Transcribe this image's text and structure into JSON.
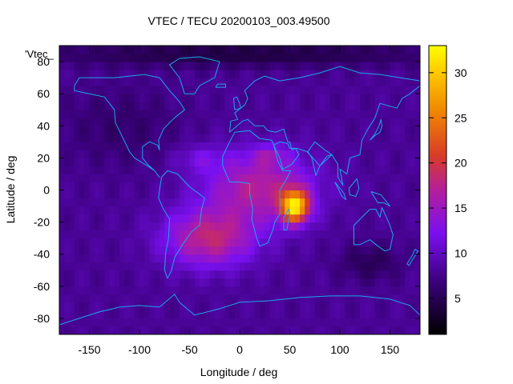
{
  "chart_data": {
    "type": "heatmap",
    "title": "VTEC / TECU 20200103_003.49500",
    "xlabel": "Longitude / deg",
    "ylabel": "Latitude / deg",
    "key_label": "'Vtec_",
    "xlim": [
      -180,
      180
    ],
    "ylim": [
      -90,
      90
    ],
    "xticks": [
      -150,
      -100,
      -50,
      0,
      50,
      100,
      150
    ],
    "yticks": [
      -80,
      -60,
      -40,
      -20,
      0,
      20,
      40,
      60,
      80
    ],
    "colorbar": {
      "min": 1,
      "max": 33,
      "ticks": [
        5,
        10,
        15,
        20,
        25,
        30
      ]
    },
    "grid_step_deg": 5,
    "background_tecu": 8,
    "field_blobs": [
      {
        "lon": 55,
        "lat": -10,
        "lon_sigma": 14,
        "lat_sigma": 10,
        "tecu": 21
      },
      {
        "lon": 20,
        "lat": 2,
        "lon_sigma": 55,
        "lat_sigma": 22,
        "tecu": 9
      },
      {
        "lon": -30,
        "lat": -30,
        "lon_sigma": 45,
        "lat_sigma": 18,
        "tecu": 10
      },
      {
        "lon": 30,
        "lat": 22,
        "lon_sigma": 18,
        "lat_sigma": 6,
        "tecu": 4
      },
      {
        "lon": -40,
        "lat": 20,
        "lon_sigma": 25,
        "lat_sigma": 8,
        "tecu": 3
      },
      {
        "lon": -120,
        "lat": 40,
        "lon_sigma": 60,
        "lat_sigma": 25,
        "tecu": -2
      },
      {
        "lon": 0,
        "lat": 85,
        "lon_sigma": 200,
        "lat_sigma": 8,
        "tecu": -4
      },
      {
        "lon": 130,
        "lat": -45,
        "lon_sigma": 30,
        "lat_sigma": 12,
        "tecu": -3
      }
    ],
    "coastlines": [
      {
        "name": "north-america",
        "points": [
          [
            -165,
            65
          ],
          [
            -160,
            70
          ],
          [
            -140,
            70
          ],
          [
            -125,
            70
          ],
          [
            -95,
            72
          ],
          [
            -80,
            70
          ],
          [
            -70,
            62
          ],
          [
            -60,
            55
          ],
          [
            -55,
            50
          ],
          [
            -65,
            45
          ],
          [
            -70,
            42
          ],
          [
            -76,
            38
          ],
          [
            -81,
            31
          ],
          [
            -80,
            25
          ],
          [
            -82,
            28
          ],
          [
            -90,
            30
          ],
          [
            -97,
            27
          ],
          [
            -97,
            20
          ],
          [
            -92,
            16
          ],
          [
            -85,
            12
          ],
          [
            -80,
            8
          ],
          [
            -85,
            12
          ],
          [
            -92,
            15
          ],
          [
            -105,
            20
          ],
          [
            -110,
            24
          ],
          [
            -117,
            33
          ],
          [
            -124,
            42
          ],
          [
            -125,
            50
          ],
          [
            -135,
            58
          ],
          [
            -150,
            60
          ],
          [
            -165,
            62
          ],
          [
            -165,
            65
          ]
        ]
      },
      {
        "name": "greenland",
        "points": [
          [
            -55,
            60
          ],
          [
            -45,
            60
          ],
          [
            -40,
            65
          ],
          [
            -25,
            70
          ],
          [
            -20,
            80
          ],
          [
            -40,
            83
          ],
          [
            -60,
            82
          ],
          [
            -70,
            78
          ],
          [
            -60,
            70
          ],
          [
            -55,
            60
          ]
        ]
      },
      {
        "name": "south-america",
        "points": [
          [
            -78,
            8
          ],
          [
            -72,
            12
          ],
          [
            -62,
            10
          ],
          [
            -50,
            2
          ],
          [
            -35,
            -5
          ],
          [
            -38,
            -12
          ],
          [
            -40,
            -22
          ],
          [
            -48,
            -26
          ],
          [
            -58,
            -35
          ],
          [
            -65,
            -42
          ],
          [
            -68,
            -50
          ],
          [
            -72,
            -55
          ],
          [
            -75,
            -50
          ],
          [
            -74,
            -40
          ],
          [
            -71,
            -30
          ],
          [
            -70,
            -18
          ],
          [
            -76,
            -12
          ],
          [
            -81,
            -5
          ],
          [
            -80,
            0
          ],
          [
            -78,
            8
          ]
        ]
      },
      {
        "name": "africa",
        "points": [
          [
            -17,
            15
          ],
          [
            -10,
            5
          ],
          [
            0,
            5
          ],
          [
            10,
            4
          ],
          [
            10,
            -2
          ],
          [
            13,
            -12
          ],
          [
            12,
            -18
          ],
          [
            17,
            -30
          ],
          [
            20,
            -35
          ],
          [
            28,
            -33
          ],
          [
            33,
            -25
          ],
          [
            35,
            -20
          ],
          [
            40,
            -15
          ],
          [
            40,
            -8
          ],
          [
            40,
            0
          ],
          [
            45,
            5
          ],
          [
            51,
            12
          ],
          [
            43,
            12
          ],
          [
            38,
            18
          ],
          [
            34,
            28
          ],
          [
            32,
            31
          ],
          [
            20,
            32
          ],
          [
            10,
            37
          ],
          [
            -5,
            36
          ],
          [
            -10,
            30
          ],
          [
            -17,
            21
          ],
          [
            -17,
            15
          ]
        ]
      },
      {
        "name": "madagascar",
        "points": [
          [
            44,
            -25
          ],
          [
            47,
            -25
          ],
          [
            50,
            -15
          ],
          [
            49,
            -12
          ],
          [
            44,
            -17
          ],
          [
            44,
            -25
          ]
        ]
      },
      {
        "name": "eurasia",
        "points": [
          [
            -10,
            36
          ],
          [
            -9,
            43
          ],
          [
            -2,
            44
          ],
          [
            -5,
            48
          ],
          [
            5,
            53
          ],
          [
            8,
            57
          ],
          [
            5,
            62
          ],
          [
            15,
            68
          ],
          [
            25,
            71
          ],
          [
            40,
            68
          ],
          [
            60,
            70
          ],
          [
            80,
            73
          ],
          [
            100,
            77
          ],
          [
            120,
            73
          ],
          [
            140,
            72
          ],
          [
            160,
            70
          ],
          [
            180,
            68
          ],
          [
            180,
            65
          ],
          [
            170,
            60
          ],
          [
            162,
            57
          ],
          [
            157,
            51
          ],
          [
            140,
            54
          ],
          [
            135,
            45
          ],
          [
            128,
            38
          ],
          [
            122,
            31
          ],
          [
            120,
            22
          ],
          [
            110,
            20
          ],
          [
            107,
            10
          ],
          [
            100,
            13
          ],
          [
            103,
            3
          ],
          [
            98,
            8
          ],
          [
            98,
            16
          ],
          [
            92,
            22
          ],
          [
            80,
            15
          ],
          [
            73,
            20
          ],
          [
            67,
            24
          ],
          [
            57,
            26
          ],
          [
            52,
            25
          ],
          [
            50,
            30
          ],
          [
            48,
            30
          ],
          [
            44,
            38
          ],
          [
            36,
            36
          ],
          [
            28,
            37
          ],
          [
            24,
            40
          ],
          [
            15,
            40
          ],
          [
            8,
            44
          ],
          [
            3,
            43
          ],
          [
            -10,
            36
          ]
        ]
      },
      {
        "name": "arabia",
        "points": [
          [
            34,
            28
          ],
          [
            40,
            20
          ],
          [
            43,
            13
          ],
          [
            52,
            16
          ],
          [
            59,
            22
          ],
          [
            56,
            26
          ],
          [
            50,
            26
          ],
          [
            48,
            29
          ],
          [
            40,
            30
          ],
          [
            34,
            28
          ]
        ]
      },
      {
        "name": "india",
        "points": [
          [
            68,
            24
          ],
          [
            72,
            20
          ],
          [
            76,
            9
          ],
          [
            80,
            15
          ],
          [
            87,
            21
          ],
          [
            92,
            22
          ],
          [
            85,
            25
          ],
          [
            75,
            30
          ],
          [
            68,
            24
          ]
        ]
      },
      {
        "name": "australia",
        "points": [
          [
            114,
            -22
          ],
          [
            114,
            -34
          ],
          [
            120,
            -34
          ],
          [
            130,
            -31
          ],
          [
            138,
            -35
          ],
          [
            145,
            -38
          ],
          [
            150,
            -37
          ],
          [
            153,
            -28
          ],
          [
            150,
            -22
          ],
          [
            145,
            -15
          ],
          [
            142,
            -11
          ],
          [
            140,
            -17
          ],
          [
            136,
            -12
          ],
          [
            130,
            -12
          ],
          [
            122,
            -17
          ],
          [
            114,
            -22
          ]
        ]
      },
      {
        "name": "new-zealand",
        "points": [
          [
            167,
            -46
          ],
          [
            172,
            -41
          ],
          [
            175,
            -37
          ],
          [
            178,
            -38
          ],
          [
            174,
            -42
          ],
          [
            169,
            -47
          ],
          [
            167,
            -46
          ]
        ]
      },
      {
        "name": "borneo",
        "points": [
          [
            109,
            1
          ],
          [
            117,
            7
          ],
          [
            119,
            1
          ],
          [
            116,
            -4
          ],
          [
            110,
            -3
          ],
          [
            109,
            1
          ]
        ]
      },
      {
        "name": "sumatra",
        "points": [
          [
            95,
            5
          ],
          [
            104,
            -2
          ],
          [
            106,
            -6
          ],
          [
            102,
            -4
          ],
          [
            95,
            5
          ]
        ]
      },
      {
        "name": "new-guinea",
        "points": [
          [
            131,
            -1
          ],
          [
            141,
            -3
          ],
          [
            150,
            -10
          ],
          [
            144,
            -8
          ],
          [
            138,
            -8
          ],
          [
            131,
            -1
          ]
        ]
      },
      {
        "name": "japan",
        "points": [
          [
            130,
            31
          ],
          [
            135,
            34
          ],
          [
            140,
            36
          ],
          [
            142,
            40
          ],
          [
            141,
            44
          ],
          [
            139,
            40
          ],
          [
            135,
            35
          ],
          [
            130,
            31
          ]
        ]
      },
      {
        "name": "uk",
        "points": [
          [
            -5,
            50
          ],
          [
            1,
            51
          ],
          [
            0,
            54
          ],
          [
            -3,
            58
          ],
          [
            -6,
            57
          ],
          [
            -5,
            50
          ]
        ]
      },
      {
        "name": "iceland",
        "points": [
          [
            -24,
            64
          ],
          [
            -14,
            64
          ],
          [
            -14,
            66
          ],
          [
            -22,
            66
          ],
          [
            -24,
            64
          ]
        ]
      },
      {
        "name": "antarctica",
        "points": [
          [
            -180,
            -84
          ],
          [
            -160,
            -80
          ],
          [
            -140,
            -76
          ],
          [
            -120,
            -73
          ],
          [
            -100,
            -72
          ],
          [
            -80,
            -73
          ],
          [
            -65,
            -65
          ],
          [
            -60,
            -70
          ],
          [
            -45,
            -78
          ],
          [
            -20,
            -74
          ],
          [
            0,
            -70
          ],
          [
            30,
            -69
          ],
          [
            60,
            -67
          ],
          [
            90,
            -66
          ],
          [
            120,
            -66
          ],
          [
            150,
            -68
          ],
          [
            170,
            -72
          ],
          [
            180,
            -78
          ]
        ]
      }
    ]
  }
}
